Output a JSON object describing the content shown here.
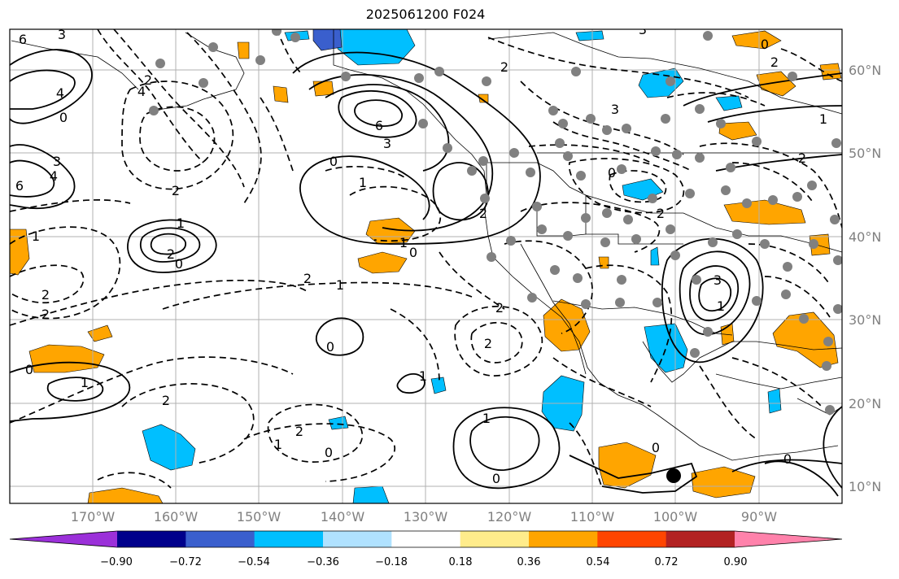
{
  "title": "2025061200 F024",
  "lat_labels": [
    "60°N",
    "50°N",
    "40°N",
    "30°N",
    "20°N",
    "10°N"
  ],
  "lon_labels": [
    "170°W",
    "160°W",
    "150°W",
    "140°W",
    "130°W",
    "120°W",
    "110°W",
    "100°W",
    "90°W"
  ],
  "colorbar": {
    "ticks": [
      "−0.90",
      "−0.72",
      "−0.54",
      "−0.36",
      "−0.18",
      "0.18",
      "0.36",
      "0.54",
      "0.72",
      "0.90"
    ],
    "colors": [
      "#9b30d9",
      "#00008b",
      "#3a5fcd",
      "#00bfff",
      "#b0e2ff",
      "#ffffff",
      "#ffec8b",
      "#ffa500",
      "#ff4500",
      "#b22222",
      "#ff82ab"
    ]
  },
  "contour_labels": [
    "6",
    "3",
    "4",
    "0",
    "3",
    "4",
    "6",
    "2",
    "4",
    "6",
    "3",
    "0",
    "1",
    "3",
    "2",
    "0",
    "3",
    "2",
    "0",
    "1",
    "2",
    "1",
    "2",
    "0",
    "1",
    "2",
    "2",
    "1",
    "2",
    "0",
    "2",
    "0",
    "1",
    "2",
    "0",
    "2",
    "1",
    "2",
    "1",
    "0",
    "1",
    "2",
    "0",
    "0",
    "1",
    "0",
    "2",
    "3",
    "1",
    "2"
  ],
  "colors": {
    "frame": "#000000",
    "grid": "#b0b0b0",
    "station": "#808080",
    "positive_fill": "#ffa500",
    "negative_fill": "#00bfff",
    "strong_negative_fill": "#3a5fcd"
  }
}
